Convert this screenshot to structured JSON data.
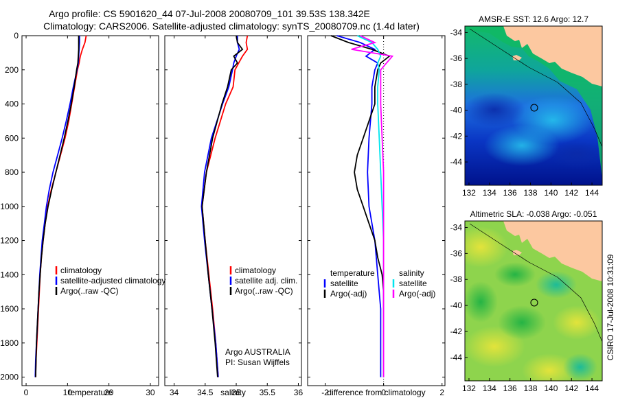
{
  "header": {
    "line1": "Argo profile: CS 5901620_44 07-Jul-2008 20080709_101 39.53S 138.342E",
    "line2": "Climatology: CARS2006. Satellite-adjusted climatology: synTS_20080709.nc (1.4d later)"
  },
  "colors": {
    "climatology": "#ff0000",
    "satellite": "#0000ff",
    "argo": "#000000",
    "salt_satellite": "#00e5ee",
    "salt_argo": "#ff00ff",
    "land": "#fcc8a0"
  },
  "chart_data": [
    {
      "type": "line",
      "xlabel": "temperature",
      "ylabel": "",
      "xlim": [
        -1,
        32
      ],
      "ylim": [
        2050,
        0
      ],
      "xticks": [
        "0",
        "10",
        "20",
        "30"
      ],
      "yticks": [
        "0",
        "200",
        "400",
        "600",
        "800",
        "1000",
        "1200",
        "1400",
        "1600",
        "1800",
        "2000"
      ],
      "legend": {
        "position": "bottom-right",
        "entries": [
          "climatology",
          "satellite-adjusted climatology",
          "Argo(..raw -QC)"
        ]
      },
      "series": [
        {
          "name": "climatology",
          "color": "#ff0000",
          "points": [
            [
              14.5,
              0
            ],
            [
              14.2,
              40
            ],
            [
              13.6,
              80
            ],
            [
              13.1,
              120
            ],
            [
              12.8,
              160
            ],
            [
              12.4,
              200
            ],
            [
              11.7,
              300
            ],
            [
              11.0,
              400
            ],
            [
              10.3,
              500
            ],
            [
              9.4,
              600
            ],
            [
              8.3,
              700
            ],
            [
              7.2,
              800
            ],
            [
              6.1,
              900
            ],
            [
              5.2,
              1000
            ],
            [
              4.6,
              1100
            ],
            [
              4.1,
              1200
            ],
            [
              3.7,
              1300
            ],
            [
              3.4,
              1400
            ],
            [
              3.2,
              1500
            ],
            [
              3.0,
              1600
            ],
            [
              2.8,
              1700
            ],
            [
              2.6,
              1800
            ],
            [
              2.4,
              1900
            ],
            [
              2.3,
              2000
            ]
          ]
        },
        {
          "name": "satellite-adjusted climatology",
          "color": "#0000ff",
          "points": [
            [
              12.9,
              0
            ],
            [
              12.9,
              40
            ],
            [
              12.8,
              80
            ],
            [
              12.7,
              120
            ],
            [
              12.6,
              160
            ],
            [
              12.3,
              200
            ],
            [
              11.4,
              300
            ],
            [
              10.6,
              400
            ],
            [
              9.7,
              500
            ],
            [
              8.7,
              600
            ],
            [
              7.6,
              700
            ],
            [
              6.5,
              800
            ],
            [
              5.6,
              900
            ],
            [
              4.9,
              1000
            ],
            [
              4.4,
              1100
            ],
            [
              3.9,
              1200
            ],
            [
              3.6,
              1300
            ],
            [
              3.3,
              1400
            ],
            [
              3.1,
              1500
            ],
            [
              2.9,
              1600
            ],
            [
              2.7,
              1700
            ],
            [
              2.5,
              1800
            ],
            [
              2.3,
              1900
            ],
            [
              2.2,
              2000
            ]
          ]
        },
        {
          "name": "Argo(..raw -QC)",
          "color": "#000000",
          "points": [
            [
              12.7,
              0
            ],
            [
              12.7,
              40
            ],
            [
              12.7,
              80
            ],
            [
              12.6,
              120
            ],
            [
              12.5,
              160
            ],
            [
              12.2,
              200
            ],
            [
              11.6,
              300
            ],
            [
              10.9,
              400
            ],
            [
              10.1,
              500
            ],
            [
              9.2,
              600
            ],
            [
              8.2,
              700
            ],
            [
              7.2,
              800
            ],
            [
              6.2,
              900
            ],
            [
              5.3,
              1000
            ],
            [
              4.6,
              1100
            ],
            [
              4.1,
              1200
            ],
            [
              3.7,
              1300
            ],
            [
              3.4,
              1400
            ],
            [
              3.1,
              1500
            ],
            [
              2.9,
              1600
            ],
            [
              2.7,
              1700
            ],
            [
              2.5,
              1800
            ],
            [
              2.4,
              1900
            ],
            [
              2.3,
              2000
            ]
          ]
        }
      ]
    },
    {
      "type": "line",
      "xlabel": "salinity",
      "xlim": [
        33.85,
        36.05
      ],
      "ylim": [
        2050,
        0
      ],
      "xticks": [
        "34",
        "34.5",
        "35",
        "35.5",
        "36"
      ],
      "legend": {
        "position": "bottom-right",
        "entries": [
          "climatology",
          "satellite adj. clim.",
          "Argo(..raw -QC)"
        ]
      },
      "annotation": [
        "Argo AUSTRALIA",
        "PI: Susan Wijffels"
      ],
      "series": [
        {
          "name": "climatology",
          "color": "#ff0000",
          "points": [
            [
              35.18,
              0
            ],
            [
              35.16,
              40
            ],
            [
              35.18,
              80
            ],
            [
              35.1,
              120
            ],
            [
              35.04,
              160
            ],
            [
              34.98,
              200
            ],
            [
              34.95,
              300
            ],
            [
              34.83,
              400
            ],
            [
              34.66,
              600
            ],
            [
              34.52,
              800
            ],
            [
              34.45,
              1000
            ],
            [
              34.5,
              1200
            ],
            [
              34.56,
              1400
            ],
            [
              34.62,
              1600
            ],
            [
              34.67,
              1800
            ],
            [
              34.71,
              2000
            ]
          ]
        },
        {
          "name": "satellite adj. clim.",
          "color": "#0000ff",
          "points": [
            [
              35.02,
              0
            ],
            [
              35.02,
              40
            ],
            [
              35.05,
              80
            ],
            [
              35.0,
              120
            ],
            [
              34.96,
              160
            ],
            [
              34.94,
              200
            ],
            [
              34.88,
              300
            ],
            [
              34.78,
              400
            ],
            [
              34.6,
              600
            ],
            [
              34.49,
              800
            ],
            [
              34.44,
              1000
            ],
            [
              34.49,
              1200
            ],
            [
              34.55,
              1400
            ],
            [
              34.61,
              1600
            ],
            [
              34.67,
              1800
            ],
            [
              34.71,
              2000
            ]
          ]
        },
        {
          "name": "Argo(..raw -QC)",
          "color": "#000000",
          "points": [
            [
              35.0,
              0
            ],
            [
              35.02,
              40
            ],
            [
              35.1,
              80
            ],
            [
              34.96,
              120
            ],
            [
              35.02,
              160
            ],
            [
              34.92,
              200
            ],
            [
              34.86,
              300
            ],
            [
              34.77,
              400
            ],
            [
              34.62,
              600
            ],
            [
              34.52,
              800
            ],
            [
              34.45,
              1000
            ],
            [
              34.5,
              1200
            ],
            [
              34.55,
              1400
            ],
            [
              34.61,
              1600
            ],
            [
              34.66,
              1800
            ],
            [
              34.7,
              2000
            ]
          ]
        }
      ]
    },
    {
      "type": "line",
      "xlabel": "difference from climatology",
      "xlim": [
        -2.6,
        2.1
      ],
      "ylim": [
        2050,
        0
      ],
      "xticks": [
        "-2",
        "0",
        "2"
      ],
      "zero_line": "dotted",
      "legend": {
        "position": "bottom",
        "groups": [
          {
            "title": "temperature",
            "entries": [
              "satellite",
              "Argo(-adj)"
            ]
          },
          {
            "title": "salinity",
            "entries": [
              "satellite",
              "Argo(-adj)"
            ]
          }
        ]
      },
      "series": [
        {
          "name": "satellite",
          "group": "temperature",
          "color": "#0000ff",
          "points": [
            [
              -1.6,
              0
            ],
            [
              -0.8,
              40
            ],
            [
              -0.3,
              80
            ],
            [
              -0.6,
              120
            ],
            [
              -0.2,
              160
            ],
            [
              -0.3,
              200
            ],
            [
              -0.4,
              300
            ],
            [
              -0.4,
              400
            ],
            [
              -0.5,
              600
            ],
            [
              -0.55,
              800
            ],
            [
              -0.5,
              1000
            ],
            [
              -0.3,
              1200
            ],
            [
              -0.2,
              1400
            ],
            [
              -0.1,
              1600
            ],
            [
              -0.1,
              1800
            ],
            [
              -0.1,
              2000
            ]
          ]
        },
        {
          "name": "Argo(-adj)",
          "group": "temperature",
          "color": "#000000",
          "points": [
            [
              -1.8,
              0
            ],
            [
              -1.2,
              40
            ],
            [
              -0.4,
              80
            ],
            [
              0.2,
              120
            ],
            [
              -0.1,
              160
            ],
            [
              -0.2,
              200
            ],
            [
              -0.3,
              300
            ],
            [
              -0.3,
              400
            ],
            [
              -0.5,
              500
            ],
            [
              -0.7,
              600
            ],
            [
              -0.9,
              700
            ],
            [
              -1.0,
              800
            ],
            [
              -0.9,
              900
            ],
            [
              -0.7,
              1000
            ],
            [
              -0.5,
              1100
            ],
            [
              -0.3,
              1200
            ],
            [
              -0.2,
              1300
            ],
            [
              -0.05,
              1400
            ],
            [
              0.0,
              1500
            ],
            [
              0.0,
              1600
            ],
            [
              0.0,
              1800
            ],
            [
              0.0,
              2000
            ]
          ]
        },
        {
          "name": "satellite",
          "group": "salinity",
          "color": "#00e5ee",
          "points": [
            [
              -0.9,
              0
            ],
            [
              -0.4,
              40
            ],
            [
              -0.2,
              80
            ],
            [
              -0.1,
              120
            ],
            [
              -0.2,
              160
            ],
            [
              -0.15,
              200
            ],
            [
              -0.2,
              300
            ],
            [
              -0.2,
              400
            ],
            [
              -0.15,
              600
            ],
            [
              -0.1,
              800
            ],
            [
              -0.05,
              1000
            ],
            [
              0.0,
              1200
            ],
            [
              0.0,
              1500
            ],
            [
              0.0,
              2000
            ]
          ]
        },
        {
          "name": "Argo(-adj)",
          "group": "salinity",
          "color": "#ff00ff",
          "points": [
            [
              -0.8,
              0
            ],
            [
              -0.3,
              40
            ],
            [
              -1.1,
              80
            ],
            [
              0.3,
              120
            ],
            [
              0.1,
              160
            ],
            [
              -0.1,
              200
            ],
            [
              -0.1,
              300
            ],
            [
              -0.1,
              400
            ],
            [
              -0.05,
              600
            ],
            [
              0.0,
              800
            ],
            [
              0.0,
              1000
            ],
            [
              0.0,
              1500
            ],
            [
              0.0,
              2000
            ]
          ]
        }
      ]
    },
    {
      "type": "heatmap",
      "title": "AMSR-E SST: 12.6 Argo: 12.7",
      "xlim": [
        131.6,
        145
      ],
      "ylim": [
        -45.8,
        -33.5
      ],
      "xticks": [
        "132",
        "134",
        "136",
        "138",
        "140",
        "142",
        "144"
      ],
      "yticks": [
        "-34",
        "-36",
        "-38",
        "-40",
        "-42",
        "-44"
      ],
      "float_position": [
        138.342,
        -39.53
      ]
    },
    {
      "type": "heatmap",
      "title": "Altimetric SLA: -0.038 Argo: -0.051",
      "xlim": [
        131.6,
        145
      ],
      "ylim": [
        -45.8,
        -33.5
      ],
      "xticks": [
        "132",
        "134",
        "136",
        "138",
        "140",
        "142",
        "144"
      ],
      "yticks": [
        "-34",
        "-36",
        "-38",
        "-40",
        "-42",
        "-44"
      ],
      "float_position": [
        138.342,
        -39.53
      ]
    }
  ],
  "footer": {
    "side_label": "CSIRO 17-Jul-2008 10:31:09"
  }
}
